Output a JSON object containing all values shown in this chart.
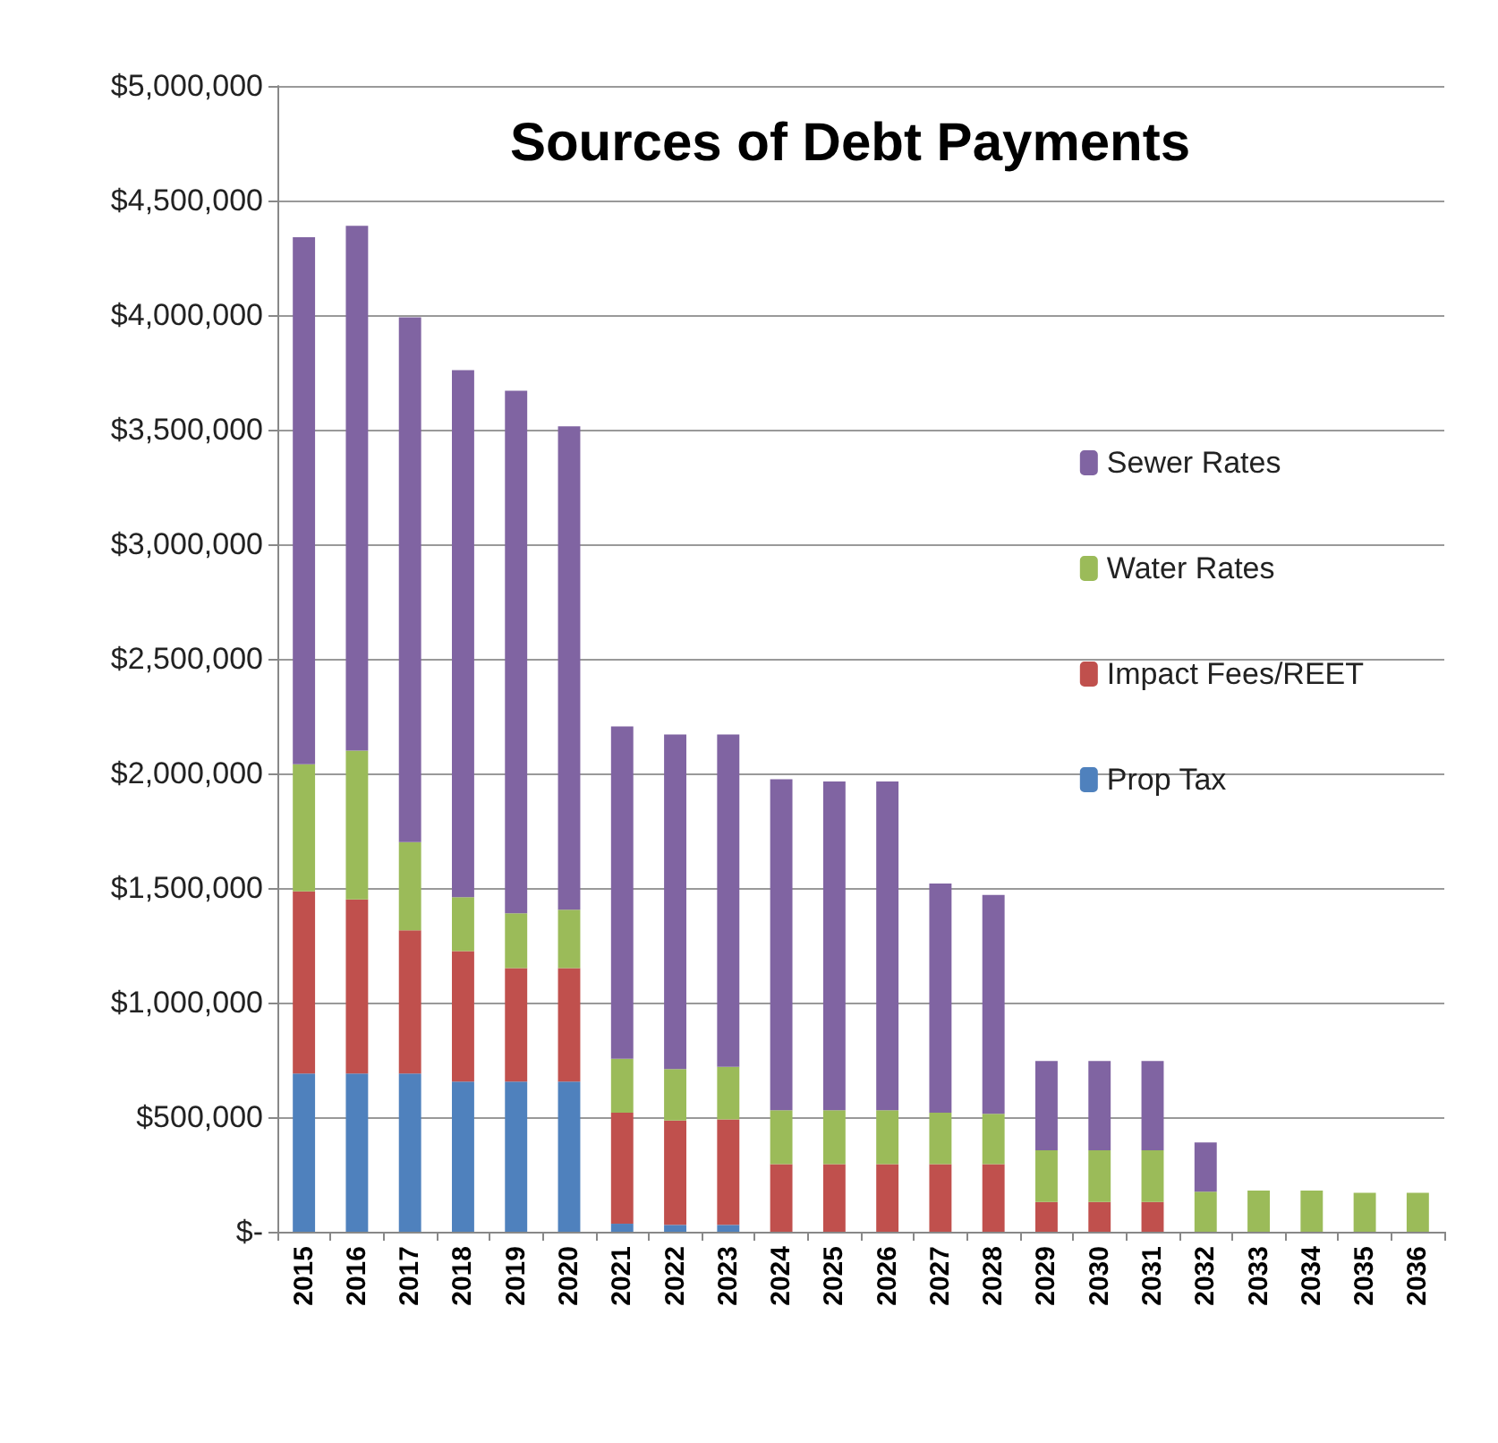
{
  "chart_data": {
    "type": "bar",
    "title": "Sources of Debt Payments",
    "categories": [
      "2015",
      "2016",
      "2017",
      "2018",
      "2019",
      "2020",
      "2021",
      "2022",
      "2023",
      "2024",
      "2025",
      "2026",
      "2027",
      "2028",
      "2029",
      "2030",
      "2031",
      "2032",
      "2033",
      "2034",
      "2035",
      "2036"
    ],
    "stacked": true,
    "series": [
      {
        "name": "Prop Tax",
        "color": "#4f81bd",
        "values": [
          690000,
          690000,
          690000,
          655000,
          655000,
          655000,
          35000,
          30000,
          30000,
          0,
          0,
          0,
          0,
          0,
          0,
          0,
          0,
          0,
          0,
          0,
          0,
          0
        ]
      },
      {
        "name": "Impact Fees/REET",
        "color": "#c0504d",
        "values": [
          795000,
          760000,
          625000,
          570000,
          495000,
          495000,
          485000,
          455000,
          460000,
          295000,
          295000,
          295000,
          295000,
          295000,
          130000,
          130000,
          130000,
          0,
          0,
          0,
          0,
          0
        ]
      },
      {
        "name": "Water Rates",
        "color": "#9bbb59",
        "values": [
          555000,
          650000,
          385000,
          235000,
          240000,
          255000,
          235000,
          225000,
          230000,
          235000,
          235000,
          235000,
          225000,
          220000,
          225000,
          225000,
          225000,
          175000,
          180000,
          180000,
          170000,
          170000
        ]
      },
      {
        "name": "Sewer Rates",
        "color": "#8064a2",
        "values": [
          2300000,
          2290000,
          2290000,
          2300000,
          2280000,
          2110000,
          1450000,
          1460000,
          1450000,
          1445000,
          1435000,
          1435000,
          1000000,
          955000,
          390000,
          390000,
          390000,
          215000,
          0,
          0,
          0,
          0
        ]
      }
    ],
    "ylim": [
      0,
      5000000
    ],
    "yticks": [
      {
        "value": 0,
        "label": "$-"
      },
      {
        "value": 500000,
        "label": "$500,000"
      },
      {
        "value": 1000000,
        "label": "$1,000,000"
      },
      {
        "value": 1500000,
        "label": "$1,500,000"
      },
      {
        "value": 2000000,
        "label": "$2,000,000"
      },
      {
        "value": 2500000,
        "label": "$2,500,000"
      },
      {
        "value": 3000000,
        "label": "$3,000,000"
      },
      {
        "value": 3500000,
        "label": "$3,500,000"
      },
      {
        "value": 4000000,
        "label": "$4,000,000"
      },
      {
        "value": 4500000,
        "label": "$4,500,000"
      },
      {
        "value": 5000000,
        "label": "$5,000,000"
      }
    ],
    "grid": "y",
    "legend": "right"
  }
}
